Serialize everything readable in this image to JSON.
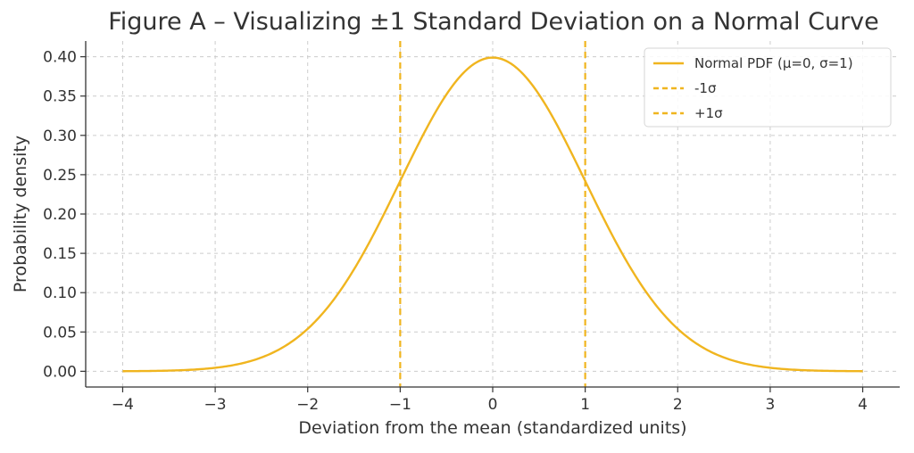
{
  "chart_data": {
    "type": "line",
    "title": "Figure A – Visualizing ±1 Standard Deviation on a Normal Curve",
    "xlabel": "Deviation from the mean (standardized units)",
    "ylabel": "Probability density",
    "xlim": [
      -4.4,
      4.4
    ],
    "ylim": [
      -0.02,
      0.42
    ],
    "xticks": [
      -4,
      -3,
      -2,
      -1,
      0,
      1,
      2,
      3,
      4
    ],
    "xtick_labels": [
      "−4",
      "−3",
      "−2",
      "−1",
      "0",
      "1",
      "2",
      "3",
      "4"
    ],
    "yticks": [
      0.0,
      0.05,
      0.1,
      0.15,
      0.2,
      0.25,
      0.3,
      0.35,
      0.4
    ],
    "ytick_labels": [
      "0.00",
      "0.05",
      "0.10",
      "0.15",
      "0.20",
      "0.25",
      "0.30",
      "0.35",
      "0.40"
    ],
    "grid": true,
    "legend_position": "top-right",
    "series": [
      {
        "name": "Normal PDF (μ=0, σ=1)",
        "style": "solid",
        "color": "#f0b51f",
        "x": [
          -4,
          -3.5,
          -3,
          -2.5,
          -2,
          -1.75,
          -1.5,
          -1.25,
          -1,
          -0.75,
          -0.5,
          -0.25,
          0,
          0.25,
          0.5,
          0.75,
          1,
          1.25,
          1.5,
          1.75,
          2,
          2.5,
          3,
          3.5,
          4
        ],
        "y": [
          0.0001,
          0.0009,
          0.0044,
          0.0175,
          0.054,
          0.0863,
          0.1295,
          0.1826,
          0.242,
          0.3011,
          0.3521,
          0.3867,
          0.3989,
          0.3867,
          0.3521,
          0.3011,
          0.242,
          0.1826,
          0.1295,
          0.0863,
          0.054,
          0.0175,
          0.0044,
          0.0009,
          0.0001
        ]
      },
      {
        "name": "-1σ",
        "style": "dashed",
        "color": "#f0b51f",
        "x": -1
      },
      {
        "name": "+1σ",
        "style": "dashed",
        "color": "#f0b51f",
        "x": 1
      }
    ]
  }
}
